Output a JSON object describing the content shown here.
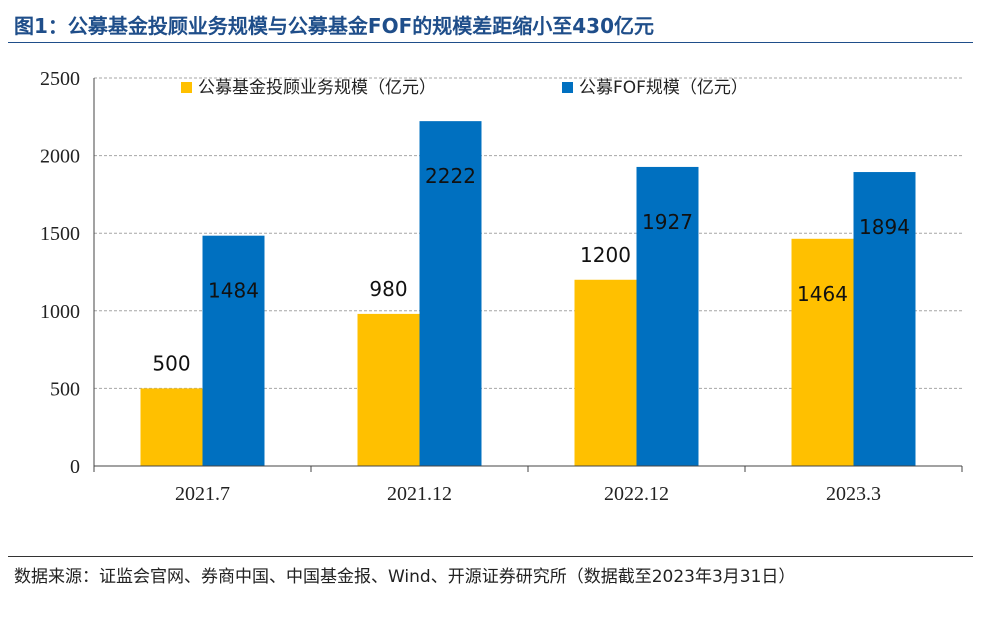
{
  "title": "图1：公募基金投顾业务规模与公募基金FOF的规模差距缩小至430亿元",
  "source": "数据来源：证监会官网、券商中国、中国基金报、Wind、开源证券研究所（数据截至2023年3月31日）",
  "colors": {
    "title": "#1f4e8a",
    "series1": "#FFC000",
    "series2": "#0070C0",
    "grid": "#a6a6a6"
  },
  "chart_data": {
    "type": "bar",
    "categories": [
      "2021.7",
      "2021.12",
      "2022.12",
      "2023.3"
    ],
    "series": [
      {
        "name": "公募基金投顾业务规模（亿元）",
        "values": [
          500,
          980,
          1200,
          1464
        ]
      },
      {
        "name": "公募FOF规模（亿元）",
        "values": [
          1484,
          2222,
          1927,
          1894
        ]
      }
    ],
    "ylim": [
      0,
      2500
    ],
    "yticks": [
      0,
      500,
      1000,
      1500,
      2000,
      2500
    ],
    "grid": true,
    "legend_position": "top"
  }
}
